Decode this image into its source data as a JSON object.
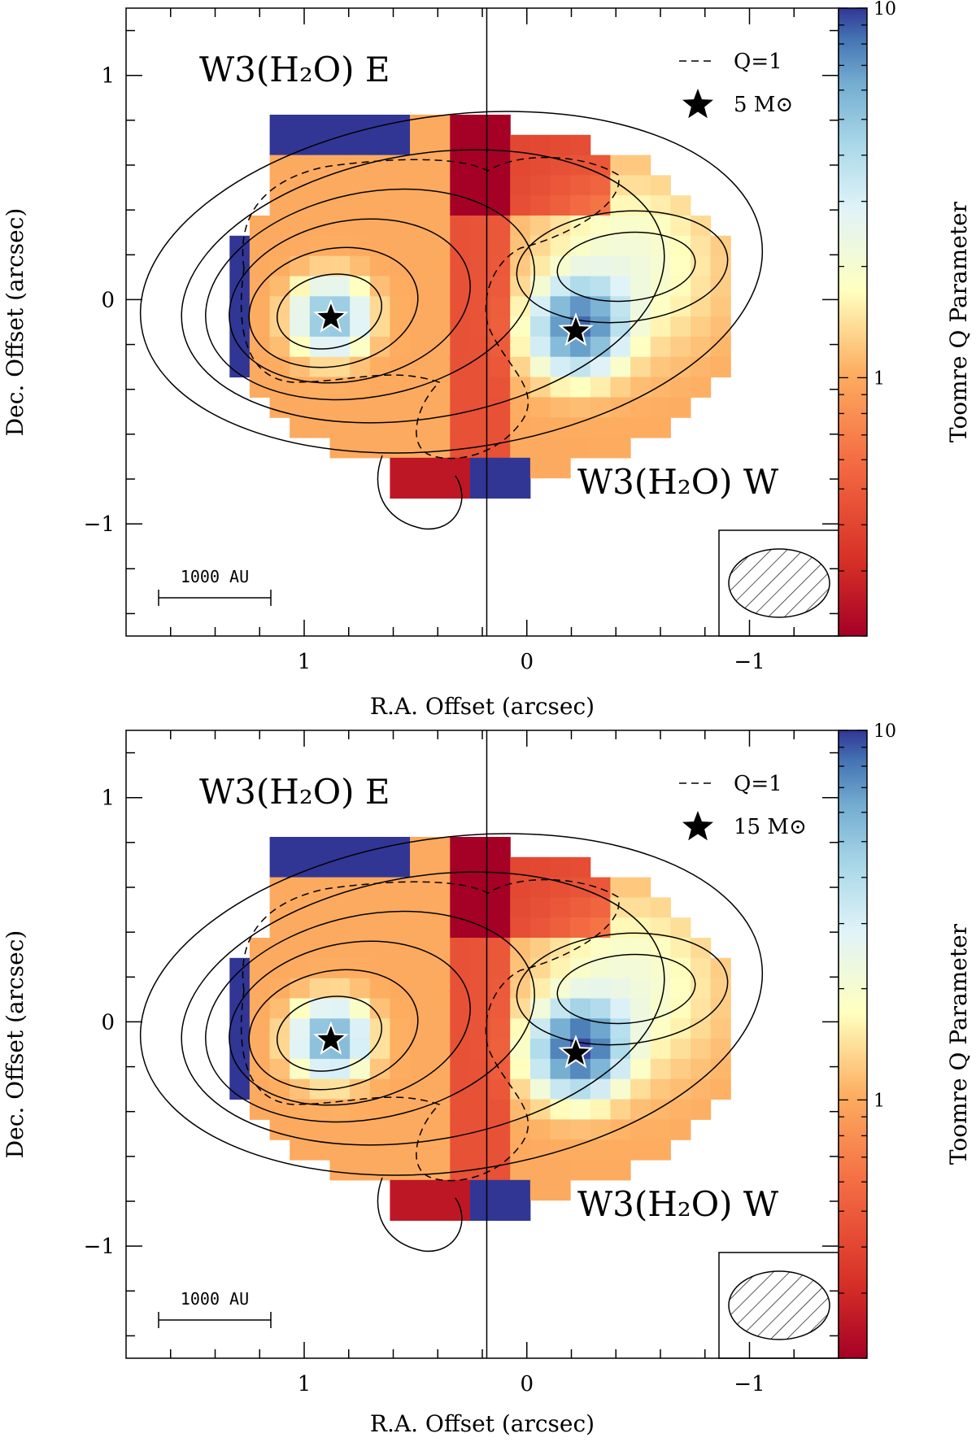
{
  "colors": {
    "colormap_low": "#a50026",
    "colormap_mid": "#ffffbf",
    "colormap_high": "#313695",
    "contour": "#000000",
    "frame": "#000000"
  },
  "chart_data": [
    {
      "type": "heatmap",
      "panel": "top",
      "source_labels": {
        "east": "W3(H₂O) E",
        "west": "W3(H₂O) W"
      },
      "legend": {
        "dashed_label": "Q=1",
        "star_label": "5 M⊙",
        "placement": "top-right"
      },
      "xlabel": "R.A. Offset (arcsec)",
      "ylabel": "Dec. Offset (arcsec)",
      "colorbar_label": "Toomre Q Parameter",
      "colorbar_ticks": [
        {
          "value": 10,
          "label": "10"
        },
        {
          "value": 1,
          "label": "1"
        }
      ],
      "colorbar_range": [
        0.2,
        10
      ],
      "colorbar_scale": "log",
      "x_ticks": [
        {
          "value": 1,
          "label": "1"
        },
        {
          "value": 0,
          "label": "0"
        },
        {
          "value": -1,
          "label": "−1"
        }
      ],
      "y_ticks": [
        {
          "value": 1,
          "label": "1"
        },
        {
          "value": 0,
          "label": "0"
        },
        {
          "value": -1,
          "label": "−1"
        }
      ],
      "xlim": [
        1.8,
        -1.4
      ],
      "ylim": [
        -1.5,
        1.3
      ],
      "x_reversed": true,
      "scale_bar_label": "1000 AU",
      "divider_ra": 0.18,
      "stars": [
        {
          "ra": 0.88,
          "dec": -0.08
        },
        {
          "ra": -0.22,
          "dec": -0.14
        }
      ]
    },
    {
      "type": "heatmap",
      "panel": "bottom",
      "source_labels": {
        "east": "W3(H₂O) E",
        "west": "W3(H₂O) W"
      },
      "legend": {
        "dashed_label": "Q=1",
        "star_label": "15 M⊙",
        "placement": "top-right"
      },
      "xlabel": "R.A. Offset (arcsec)",
      "ylabel": "Dec. Offset (arcsec)",
      "colorbar_label": "Toomre Q Parameter",
      "colorbar_ticks": [
        {
          "value": 10,
          "label": "10"
        },
        {
          "value": 1,
          "label": "1"
        }
      ],
      "colorbar_range": [
        0.2,
        10
      ],
      "colorbar_scale": "log",
      "x_ticks": [
        {
          "value": 1,
          "label": "1"
        },
        {
          "value": 0,
          "label": "0"
        },
        {
          "value": -1,
          "label": "−1"
        }
      ],
      "y_ticks": [
        {
          "value": 1,
          "label": "1"
        },
        {
          "value": 0,
          "label": "0"
        },
        {
          "value": -1,
          "label": "−1"
        }
      ],
      "xlim": [
        1.8,
        -1.4
      ],
      "ylim": [
        -1.5,
        1.3
      ],
      "x_reversed": true,
      "scale_bar_label": "1000 AU",
      "divider_ra": 0.18,
      "stars": [
        {
          "ra": 0.88,
          "dec": -0.08
        },
        {
          "ra": -0.22,
          "dec": -0.14
        }
      ]
    }
  ]
}
